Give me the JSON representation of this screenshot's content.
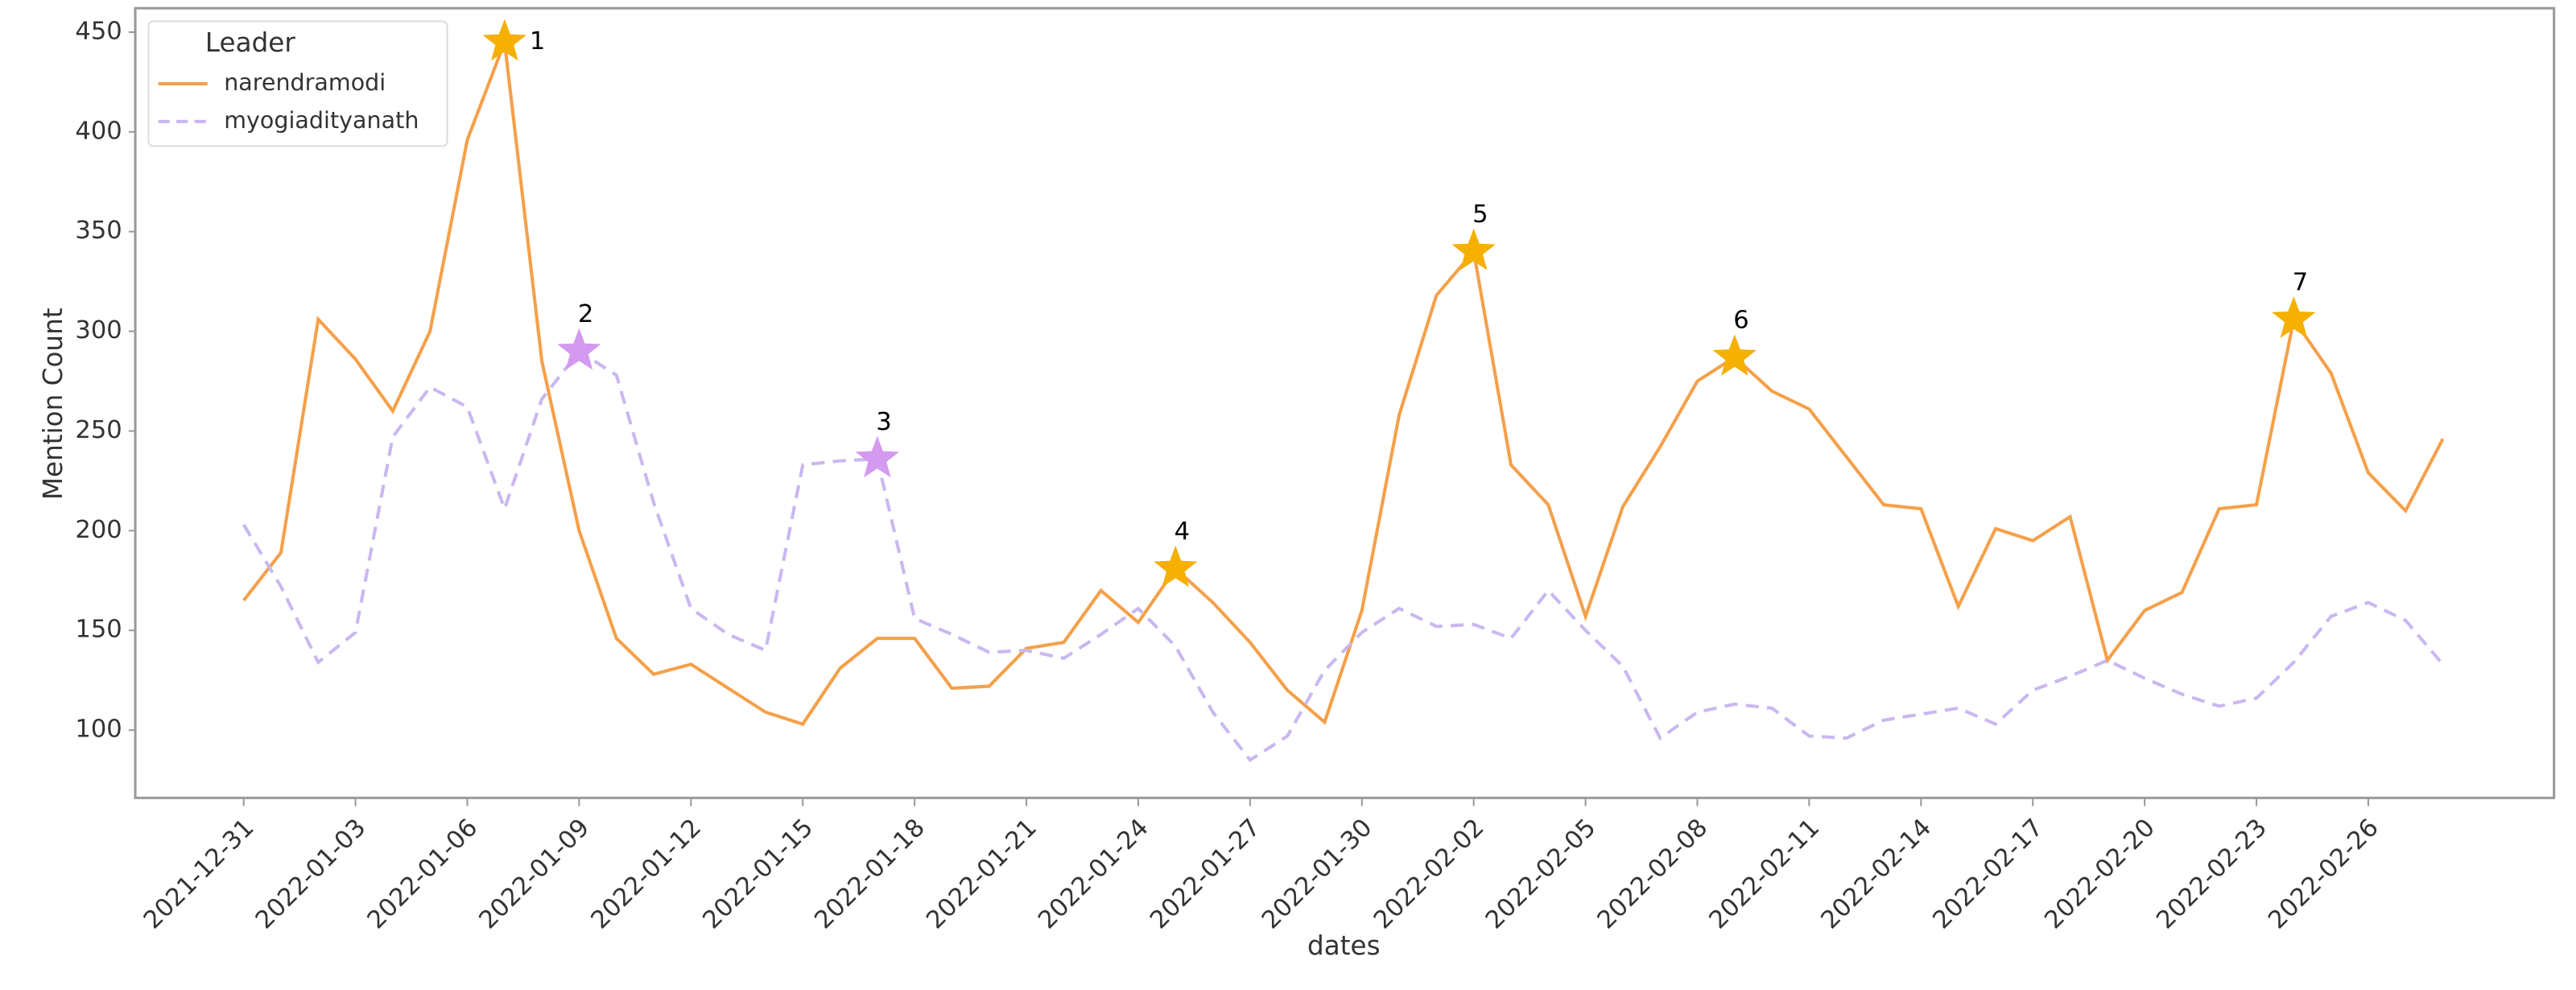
{
  "chart_data": {
    "type": "line",
    "x_label": "dates",
    "y_label": "Mention Count",
    "legend_title": "Leader",
    "legend": "upper left",
    "x": [
      "2021-12-31",
      "2022-01-01",
      "2022-01-02",
      "2022-01-03",
      "2022-01-04",
      "2022-01-05",
      "2022-01-06",
      "2022-01-07",
      "2022-01-08",
      "2022-01-09",
      "2022-01-10",
      "2022-01-11",
      "2022-01-12",
      "2022-01-13",
      "2022-01-14",
      "2022-01-15",
      "2022-01-16",
      "2022-01-17",
      "2022-01-18",
      "2022-01-19",
      "2022-01-20",
      "2022-01-21",
      "2022-01-22",
      "2022-01-23",
      "2022-01-24",
      "2022-01-25",
      "2022-01-26",
      "2022-01-27",
      "2022-01-28",
      "2022-01-29",
      "2022-01-30",
      "2022-01-31",
      "2022-02-01",
      "2022-02-02",
      "2022-02-03",
      "2022-02-04",
      "2022-02-05",
      "2022-02-06",
      "2022-02-07",
      "2022-02-08",
      "2022-02-09",
      "2022-02-10",
      "2022-02-11",
      "2022-02-12",
      "2022-02-13",
      "2022-02-14",
      "2022-02-15",
      "2022-02-16",
      "2022-02-17",
      "2022-02-18",
      "2022-02-19",
      "2022-02-20",
      "2022-02-21",
      "2022-02-22",
      "2022-02-23",
      "2022-02-24",
      "2022-02-25",
      "2022-02-26",
      "2022-02-27",
      "2022-02-28"
    ],
    "xticks": [
      "2021-12-31",
      "2022-01-03",
      "2022-01-06",
      "2022-01-09",
      "2022-01-12",
      "2022-01-15",
      "2022-01-18",
      "2022-01-21",
      "2022-01-24",
      "2022-01-27",
      "2022-01-30",
      "2022-02-02",
      "2022-02-05",
      "2022-02-08",
      "2022-02-11",
      "2022-02-14",
      "2022-02-17",
      "2022-02-20",
      "2022-02-23",
      "2022-02-26"
    ],
    "ylim": [
      66,
      462
    ],
    "yticks": [
      100,
      150,
      200,
      250,
      300,
      350,
      400,
      450
    ],
    "series": [
      {
        "name": "narendramodi",
        "color": "#f5a04a",
        "dashed": false,
        "values": [
          165,
          189,
          306,
          286,
          260,
          300,
          396,
          445,
          285,
          200,
          146,
          128,
          133,
          121,
          109,
          103,
          131,
          146,
          146,
          121,
          122,
          141,
          144,
          170,
          154,
          181,
          164,
          144,
          120,
          104,
          160,
          258,
          318,
          340,
          233,
          213,
          157,
          212,
          242,
          275,
          287,
          270,
          261,
          237,
          213,
          211,
          162,
          201,
          195,
          207,
          135,
          160,
          169,
          211,
          213,
          306,
          279,
          229,
          210,
          246
        ]
      },
      {
        "name": "myogiadityanath",
        "color": "#c9b8f0",
        "dashed": true,
        "values": [
          203,
          172,
          134,
          149,
          247,
          272,
          262,
          211,
          266,
          290,
          278,
          214,
          161,
          148,
          140,
          233,
          235,
          236,
          156,
          148,
          139,
          140,
          136,
          148,
          161,
          142,
          109,
          85,
          97,
          130,
          149,
          161,
          152,
          153,
          146,
          170,
          150,
          132,
          96,
          109,
          113,
          111,
          97,
          96,
          105,
          108,
          111,
          103,
          120,
          127,
          135,
          126,
          118,
          112,
          116,
          134,
          157,
          164,
          155,
          133
        ]
      }
    ],
    "annotations": [
      {
        "text": "1",
        "x": "2022-01-07",
        "y": 445,
        "color": "#f5b000"
      },
      {
        "text": "2",
        "x": "2022-01-09",
        "y": 290,
        "color": "#d49af0"
      },
      {
        "text": "3",
        "x": "2022-01-17",
        "y": 236,
        "color": "#d49af0"
      },
      {
        "text": "4",
        "x": "2022-01-25",
        "y": 181,
        "color": "#f5b000"
      },
      {
        "text": "5",
        "x": "2022-02-02",
        "y": 340,
        "color": "#f5b000"
      },
      {
        "text": "6",
        "x": "2022-02-09",
        "y": 287,
        "color": "#f5b000"
      },
      {
        "text": "7",
        "x": "2022-02-24",
        "y": 306,
        "color": "#f5b000"
      }
    ]
  }
}
